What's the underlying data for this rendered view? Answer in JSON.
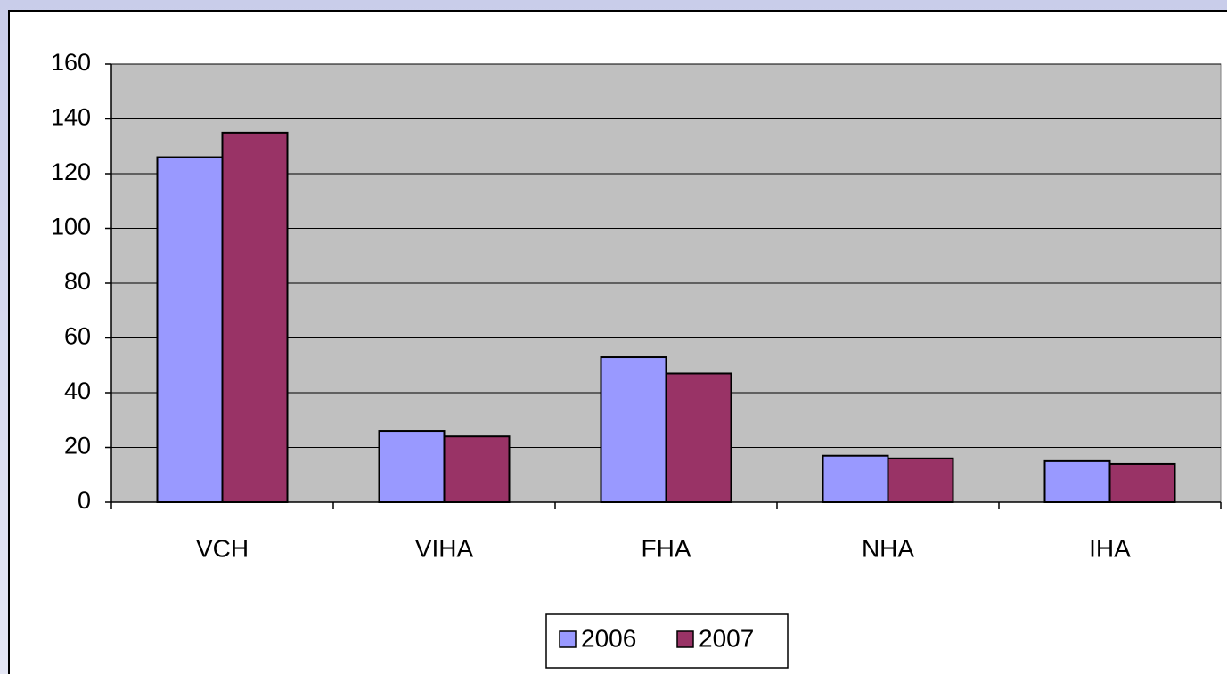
{
  "chart_data": {
    "type": "bar",
    "categories": [
      "VCH",
      "VIHA",
      "FHA",
      "NHA",
      "IHA"
    ],
    "series": [
      {
        "name": "2006",
        "color": "#9999ff",
        "values": [
          126,
          26,
          53,
          17,
          15
        ]
      },
      {
        "name": "2007",
        "color": "#993366",
        "values": [
          135,
          24,
          47,
          16,
          14
        ]
      }
    ],
    "ylim": [
      0,
      160
    ],
    "yticks": [
      0,
      20,
      40,
      60,
      80,
      100,
      120,
      140,
      160
    ],
    "grid": true,
    "legend": "bottom"
  }
}
